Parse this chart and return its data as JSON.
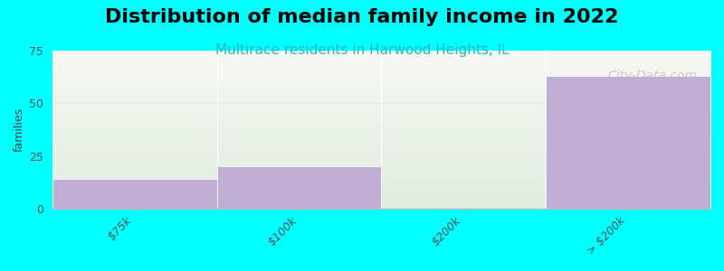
{
  "title": "Distribution of median family income in 2022",
  "subtitle": "Multirace residents in Harwood Heights, IL",
  "categories": [
    "$75k",
    "$100k",
    "$200k",
    "> $200k"
  ],
  "values": [
    14,
    20,
    0,
    63
  ],
  "bar_color": "#c0aed4",
  "background_color": "#00ffff",
  "plot_bg_top": "#f8f8f4",
  "plot_bg_bottom": "#e0ede0",
  "ylabel": "families",
  "ylim": [
    0,
    75
  ],
  "yticks": [
    0,
    25,
    50,
    75
  ],
  "title_fontsize": 16,
  "subtitle_fontsize": 11,
  "subtitle_color": "#22bbbb",
  "ylabel_color": "#444444",
  "watermark": "City-Data.com",
  "watermark_color": "#b8b8b8",
  "grid_color": "#e8e8e8",
  "tick_label_color": "#555555",
  "n_bins": 4
}
